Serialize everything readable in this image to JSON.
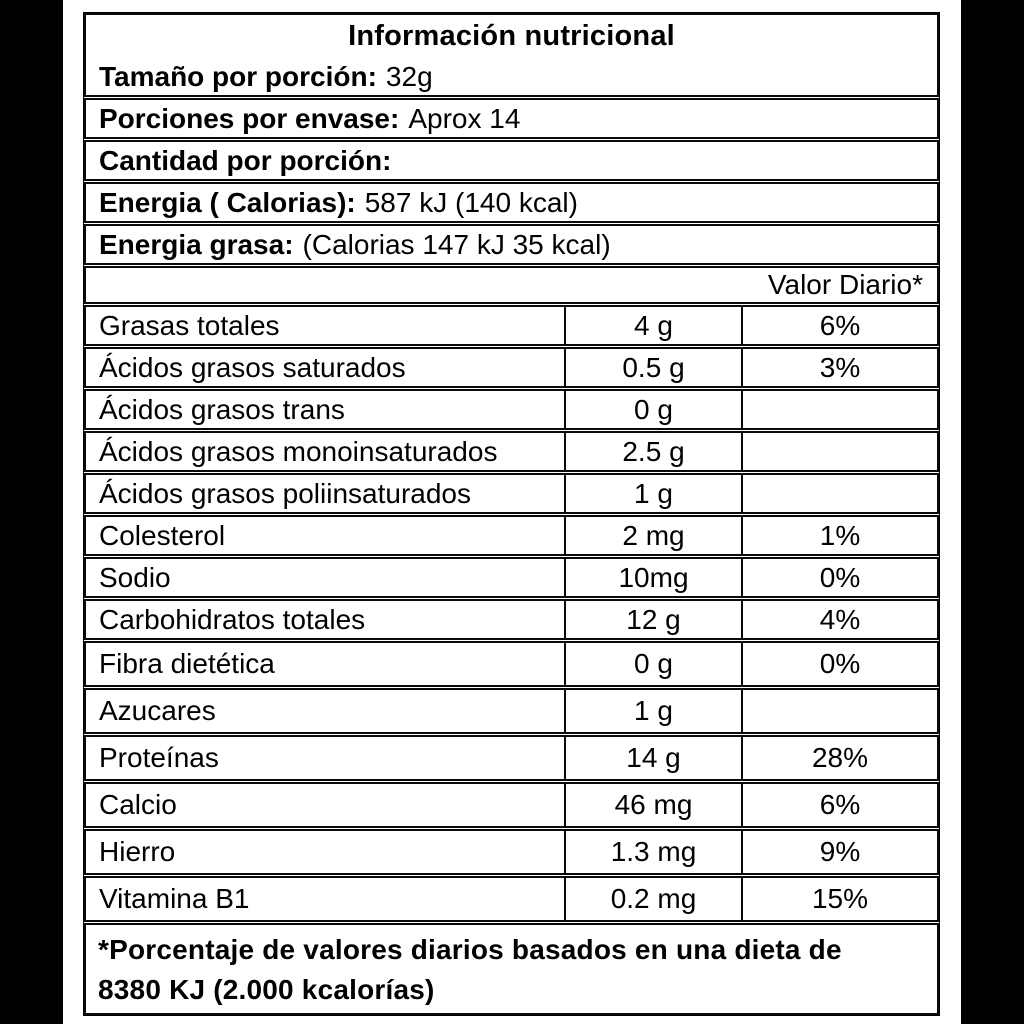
{
  "label": {
    "title": "Información nutricional",
    "serving_size": {
      "label": "Tamaño por porción:",
      "value": "32g"
    },
    "servings_per_container": {
      "label": "Porciones por envase:",
      "value": "Aprox 14"
    },
    "amount_per_serving": {
      "label": "Cantidad por porción:",
      "value": ""
    },
    "energy": {
      "label": "Energia ( Calorias):",
      "value": "587 kJ (140 kcal)"
    },
    "energy_fat": {
      "label": "Energia grasa:",
      "value": "(Calorias 147 kJ 35 kcal)"
    },
    "daily_value_header": "Valor Diario*",
    "nutrients": [
      {
        "name": "Grasas totales",
        "amount": "4 g",
        "dv": "6%"
      },
      {
        "name": "Ácidos grasos saturados",
        "amount": "0.5 g",
        "dv": "3%"
      },
      {
        "name": "Ácidos grasos trans",
        "amount": "0 g",
        "dv": ""
      },
      {
        "name": "Ácidos grasos monoinsaturados",
        "amount": "2.5 g",
        "dv": ""
      },
      {
        "name": "Ácidos grasos poliinsaturados",
        "amount": "1 g",
        "dv": ""
      },
      {
        "name": "Colesterol",
        "amount": "2 mg",
        "dv": "1%"
      },
      {
        "name": "Sodio",
        "amount": "10mg",
        "dv": "0%"
      },
      {
        "name": "Carbohidratos totales",
        "amount": "12 g",
        "dv": "4%"
      },
      {
        "name": "Fibra dietética",
        "amount": "0 g",
        "dv": "0%"
      },
      {
        "name": "Azucares",
        "amount": "1 g",
        "dv": ""
      },
      {
        "name": "Proteínas",
        "amount": "14 g",
        "dv": "28%"
      },
      {
        "name": "Calcio",
        "amount": "46 mg",
        "dv": "6%"
      },
      {
        "name": "Hierro",
        "amount": "1.3 mg",
        "dv": "9%"
      },
      {
        "name": "Vitamina B1",
        "amount": "0.2 mg",
        "dv": "15%"
      }
    ],
    "footnote_line1": "*Porcentaje de valores diarios basados en una dieta de",
    "footnote_line2": "8380 KJ (2.000 kcalorías)",
    "colors": {
      "text": "#000000",
      "border": "#0a0a0a",
      "background": "#ffffff",
      "side_bars": "#000000"
    }
  }
}
